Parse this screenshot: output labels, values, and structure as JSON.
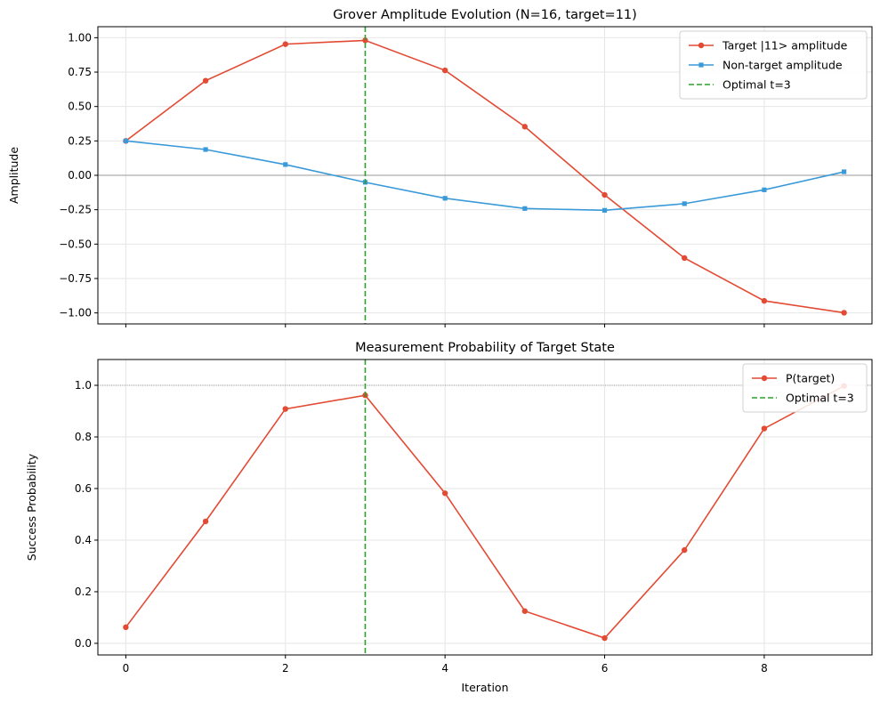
{
  "chart_data": [
    {
      "type": "line",
      "title": "Grover Amplitude Evolution (N=16, target=11)",
      "xlabel": "",
      "ylabel": "Amplitude",
      "x": [
        0,
        1,
        2,
        3,
        4,
        5,
        6,
        7,
        8,
        9
      ],
      "xlim": [
        -0.35,
        9.35
      ],
      "ylim": [
        -1.08,
        1.08
      ],
      "xticks": [
        0,
        2,
        4,
        6,
        8
      ],
      "xtick_labels": [
        "",
        "",
        "",
        "",
        ""
      ],
      "yticks": [
        1.0,
        0.75,
        0.5,
        0.25,
        0.0,
        -0.25,
        -0.5,
        -0.75,
        -1.0
      ],
      "ytick_labels": [
        "1.00",
        "0.75",
        "0.50",
        "0.25",
        "0.00",
        "−0.25",
        "−0.50",
        "−0.75",
        "−1.00"
      ],
      "grid": true,
      "legend_position": "top-right",
      "hline": {
        "y": 0,
        "color": "#808080",
        "style": "solid"
      },
      "series": [
        {
          "name": "Target |11> amplitude",
          "color": "#e34a33",
          "marker": "circle",
          "values": [
            0.25,
            0.6875,
            0.9531,
            0.9805,
            0.7627,
            0.3535,
            -0.1424,
            -0.6013,
            -0.9124,
            -0.9988
          ]
        },
        {
          "name": "Non-target amplitude",
          "color": "#3a9ad9",
          "marker": "square",
          "values": [
            0.25,
            0.1875,
            0.0781,
            -0.0508,
            -0.1669,
            -0.2414,
            -0.2545,
            -0.2062,
            -0.1056,
            0.0256
          ]
        }
      ],
      "vlines": [
        {
          "name": "Optimal t=3",
          "x": 3,
          "color": "#2ca02c",
          "style": "dashed"
        }
      ]
    },
    {
      "type": "line",
      "title": "Measurement Probability of Target State",
      "xlabel": "Iteration",
      "ylabel": "Success Probability",
      "x": [
        0,
        1,
        2,
        3,
        4,
        5,
        6,
        7,
        8,
        9
      ],
      "xlim": [
        -0.35,
        9.35
      ],
      "ylim": [
        -0.045,
        1.1
      ],
      "xticks": [
        0,
        2,
        4,
        6,
        8
      ],
      "xtick_labels": [
        "0",
        "2",
        "4",
        "6",
        "8"
      ],
      "yticks": [
        0.0,
        0.2,
        0.4,
        0.6,
        0.8,
        1.0
      ],
      "ytick_labels": [
        "0.0",
        "0.2",
        "0.4",
        "0.6",
        "0.8",
        "1.0"
      ],
      "grid": true,
      "legend_position": "top-right",
      "hline": {
        "y": 1.0,
        "color": "#808080",
        "style": "dotted"
      },
      "series": [
        {
          "name": "P(target)",
          "color": "#e34a33",
          "marker": "circle",
          "values": [
            0.0625,
            0.4727,
            0.9084,
            0.9613,
            0.5817,
            0.125,
            0.0203,
            0.3615,
            0.8325,
            0.9976
          ]
        }
      ],
      "vlines": [
        {
          "name": "Optimal t=3",
          "x": 3,
          "color": "#2ca02c",
          "style": "dashed"
        }
      ]
    }
  ]
}
